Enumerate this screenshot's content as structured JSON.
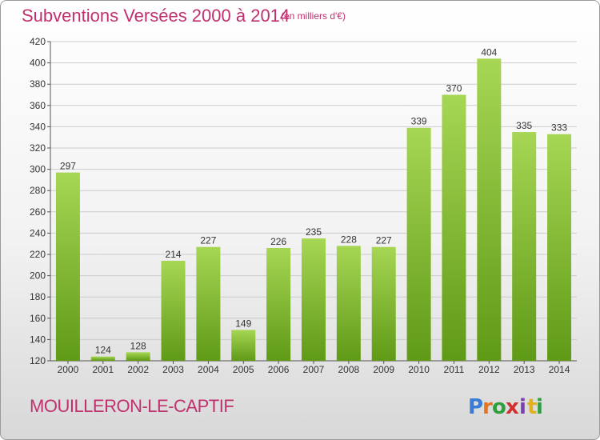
{
  "header": {
    "title": "Subventions Versées 2000 à 2014",
    "unit": "(en milliers d'€)"
  },
  "footer": {
    "commune": "MOUILLERON-LE-CAPTIF",
    "logo_text": "Proxiti",
    "logo_colors": [
      "#3a7bd5",
      "#e8731e",
      "#2e9e3e",
      "#d12f2f",
      "#7a3fb0",
      "#e0b020",
      "#2e9e3e"
    ]
  },
  "colors": {
    "title": "#c0306f",
    "bar_light": "#a6d654",
    "bar_dark": "#5f9a16",
    "grid": "#cccccc"
  },
  "chart_data": {
    "type": "bar",
    "title": "Subventions Versées 2000 à 2014",
    "subtitle": "(en milliers d'€)",
    "xlabel": "",
    "ylabel": "",
    "categories": [
      "2000",
      "2001",
      "2002",
      "2003",
      "2004",
      "2005",
      "2006",
      "2007",
      "2008",
      "2009",
      "2010",
      "2011",
      "2012",
      "2013",
      "2014"
    ],
    "values": [
      297,
      124,
      128,
      214,
      227,
      149,
      226,
      235,
      228,
      227,
      339,
      370,
      404,
      335,
      333
    ],
    "ylim": [
      120,
      420
    ],
    "yticks": [
      120,
      140,
      160,
      180,
      200,
      220,
      240,
      260,
      280,
      300,
      320,
      340,
      360,
      380,
      400,
      420
    ],
    "grid": true,
    "data_labels": true
  }
}
